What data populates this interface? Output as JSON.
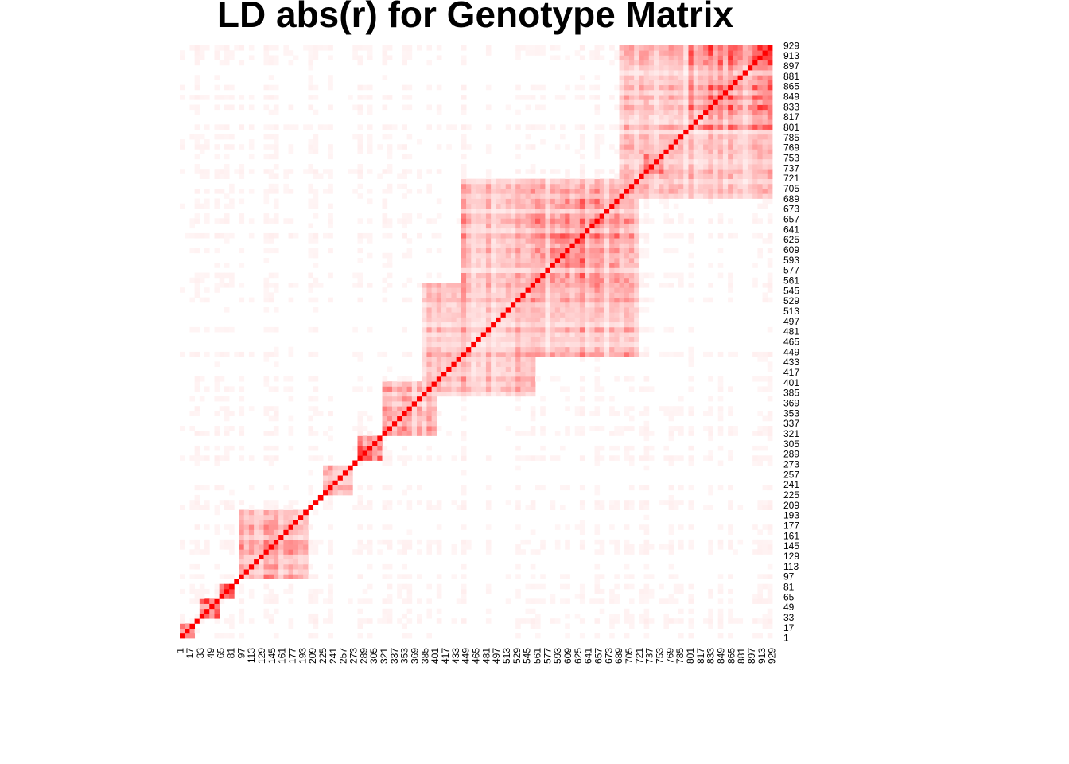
{
  "chart_data": {
    "type": "heatmap",
    "title": "LD abs(r) for Genotype Matrix",
    "xlabel": "",
    "ylabel": "",
    "n_markers": 929,
    "tick_labels": [
      "1",
      "17",
      "33",
      "49",
      "65",
      "81",
      "97",
      "113",
      "129",
      "145",
      "161",
      "177",
      "193",
      "209",
      "225",
      "241",
      "257",
      "273",
      "289",
      "305",
      "321",
      "337",
      "353",
      "369",
      "385",
      "401",
      "417",
      "433",
      "449",
      "465",
      "481",
      "497",
      "513",
      "529",
      "545",
      "561",
      "577",
      "593",
      "609",
      "625",
      "641",
      "657",
      "673",
      "689",
      "705",
      "721",
      "737",
      "753",
      "769",
      "785",
      "801",
      "817",
      "833",
      "849",
      "865",
      "881",
      "897",
      "913",
      "929"
    ],
    "value_range": [
      0,
      1
    ],
    "color_low": "#ffffff",
    "color_high": "#ff0000",
    "ld_blocks": [
      {
        "start": 1,
        "end": 28,
        "r": 0.9
      },
      {
        "start": 35,
        "end": 62,
        "r": 0.92
      },
      {
        "start": 65,
        "end": 85,
        "r": 0.97
      },
      {
        "start": 97,
        "end": 205,
        "r": 0.62
      },
      {
        "start": 225,
        "end": 275,
        "r": 0.78
      },
      {
        "start": 280,
        "end": 315,
        "r": 0.95
      },
      {
        "start": 320,
        "end": 400,
        "r": 0.6
      },
      {
        "start": 380,
        "end": 560,
        "r": 0.55
      },
      {
        "start": 440,
        "end": 720,
        "r": 0.55
      },
      {
        "start": 585,
        "end": 635,
        "r": 0.95
      },
      {
        "start": 560,
        "end": 690,
        "r": 0.72
      },
      {
        "start": 725,
        "end": 760,
        "r": 0.85
      },
      {
        "start": 795,
        "end": 929,
        "r": 0.82
      },
      {
        "start": 690,
        "end": 929,
        "r": 0.42
      }
    ]
  }
}
